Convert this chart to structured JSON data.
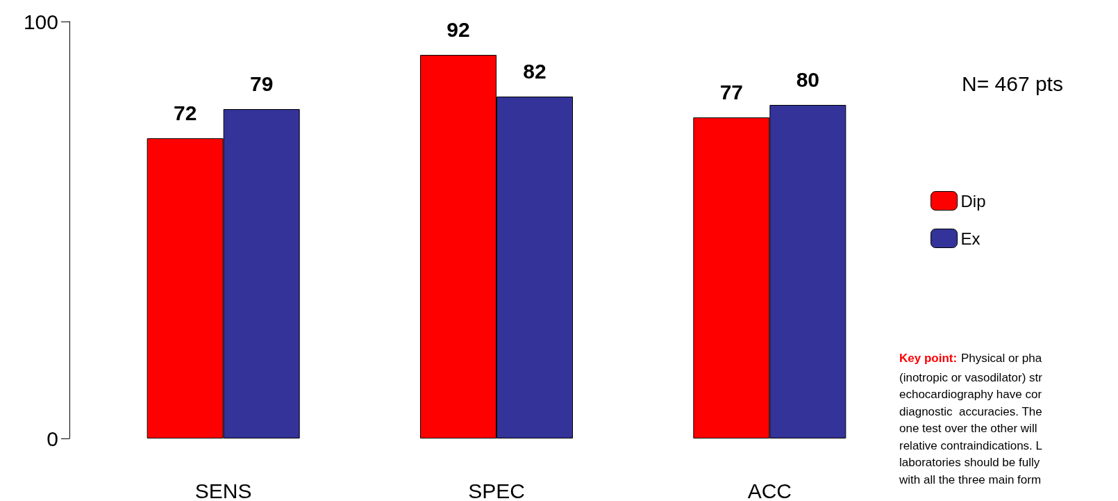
{
  "chart_data": {
    "type": "bar",
    "categories": [
      "SENS",
      "SPEC",
      "ACC"
    ],
    "series": [
      {
        "name": "Dip",
        "color": "#ff0000",
        "values": [
          72,
          92,
          77
        ]
      },
      {
        "name": "Ex",
        "color": "#333399",
        "values": [
          79,
          82,
          80
        ]
      }
    ],
    "ylim": [
      0,
      100
    ],
    "yticks": [
      0,
      100
    ],
    "grid": false,
    "legend": "right",
    "data_labels": true,
    "annotations": [
      "N= 467 pts",
      "Key point:",
      "Physical or pha\n(inotropic or vasodilator) str\nechocardiography have cor\ndiagnostic  accuracies. The\none test over the other will\nrelative contraindications. L\nlaboratories should be fully\nwith all the three main form"
    ]
  }
}
